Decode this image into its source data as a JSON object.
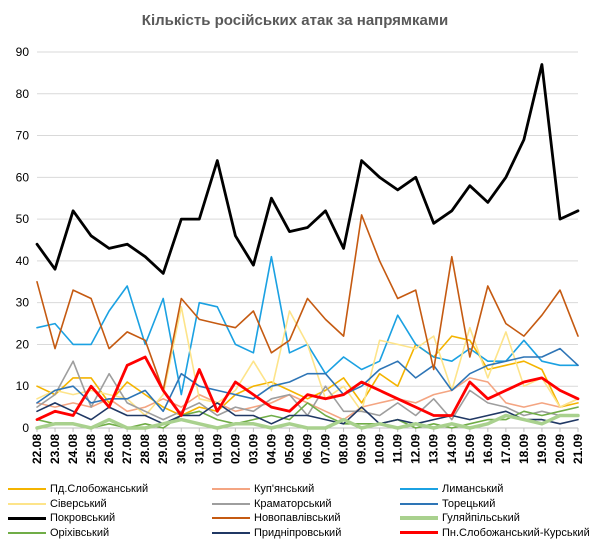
{
  "chart_data": {
    "type": "line",
    "title": "Кількість російських атак за напрямками",
    "ylim": [
      0,
      90
    ],
    "yticks": [
      0,
      10,
      20,
      30,
      40,
      50,
      60,
      70,
      80,
      90
    ],
    "grid": true,
    "legend_position": "bottom",
    "categories": [
      "22.08",
      "23.08",
      "24.08",
      "25.08",
      "26.08",
      "27.08",
      "28.08",
      "29.08",
      "30.08",
      "31.08",
      "01.09",
      "02.09",
      "03.09",
      "04.09",
      "05.09",
      "06.09",
      "07.09",
      "08.09",
      "09.09",
      "10.09",
      "11.09",
      "12.09",
      "13.09",
      "14.09",
      "15.09",
      "16.09",
      "17.09",
      "18.09",
      "19.09",
      "20.09",
      "21.09"
    ],
    "series": [
      {
        "name": "Пд.Слобожанський",
        "color": "#f4b400",
        "width": 1.6,
        "values": [
          10,
          8,
          12,
          12,
          6,
          11,
          8,
          5,
          3,
          5,
          4,
          8,
          10,
          11,
          9,
          7,
          9,
          12,
          6,
          13,
          10,
          20,
          17,
          22,
          21,
          14,
          15,
          16,
          14,
          5,
          6
        ]
      },
      {
        "name": "Куп'янський",
        "color": "#f4a582",
        "width": 1.6,
        "values": [
          6,
          5,
          6,
          5,
          7,
          4,
          5,
          7,
          5,
          8,
          6,
          4,
          5,
          6,
          8,
          6,
          4,
          2,
          5,
          6,
          7,
          6,
          8,
          9,
          12,
          11,
          6,
          5,
          6,
          5,
          7
        ]
      },
      {
        "name": "Лиманський",
        "color": "#1ba1e2",
        "width": 1.6,
        "values": [
          24,
          25,
          20,
          20,
          28,
          34,
          20,
          31,
          8,
          30,
          29,
          20,
          18,
          41,
          18,
          20,
          13,
          17,
          14,
          16,
          27,
          20,
          17,
          16,
          19,
          16,
          16,
          21,
          16,
          15,
          15
        ]
      },
      {
        "name": "Сіверський",
        "color": "#fde48a",
        "width": 1.6,
        "values": [
          7,
          9,
          8,
          9,
          8,
          7,
          3,
          8,
          29,
          7,
          6,
          9,
          16,
          9,
          28,
          20,
          7,
          10,
          4,
          21,
          20,
          19,
          22,
          9,
          24,
          12,
          23,
          10,
          12,
          5,
          7
        ]
      },
      {
        "name": "Краматорський",
        "color": "#9e9e9e",
        "width": 1.6,
        "values": [
          5,
          8,
          16,
          5,
          13,
          6,
          4,
          2,
          4,
          6,
          3,
          5,
          4,
          7,
          8,
          3,
          10,
          4,
          4,
          3,
          6,
          3,
          7,
          2,
          9,
          6,
          5,
          3,
          4,
          3,
          3
        ]
      },
      {
        "name": "Торецький",
        "color": "#2e75b6",
        "width": 1.6,
        "values": [
          6,
          9,
          10,
          6,
          7,
          7,
          9,
          4,
          13,
          10,
          9,
          8,
          7,
          10,
          11,
          13,
          13,
          8,
          10,
          14,
          16,
          12,
          15,
          9,
          13,
          15,
          16,
          17,
          17,
          19,
          15
        ]
      },
      {
        "name": "Покровський",
        "color": "#000000",
        "width": 2.8,
        "values": [
          44,
          38,
          52,
          46,
          43,
          44,
          41,
          37,
          50,
          50,
          64,
          46,
          39,
          55,
          47,
          48,
          52,
          43,
          64,
          60,
          57,
          60,
          49,
          52,
          58,
          54,
          60,
          69,
          87,
          50,
          52
        ]
      },
      {
        "name": "Новопавлівський",
        "color": "#c55a11",
        "width": 1.6,
        "values": [
          35,
          19,
          33,
          31,
          19,
          23,
          21,
          9,
          31,
          26,
          25,
          24,
          28,
          18,
          21,
          31,
          26,
          22,
          51,
          40,
          31,
          33,
          14,
          41,
          17,
          34,
          25,
          22,
          27,
          33,
          22
        ]
      },
      {
        "name": "Гуляйпільський",
        "color": "#a9d18e",
        "width": 3.5,
        "values": [
          0,
          1,
          1,
          0,
          2,
          0,
          0,
          1,
          2,
          1,
          0,
          1,
          1,
          0,
          1,
          0,
          0,
          2,
          0,
          1,
          0,
          1,
          0,
          1,
          0,
          1,
          3,
          2,
          1,
          3,
          3
        ]
      },
      {
        "name": "Оріхівський",
        "color": "#70ad47",
        "width": 1.6,
        "values": [
          2,
          1,
          1,
          0,
          1,
          0,
          1,
          0,
          3,
          4,
          2,
          1,
          2,
          3,
          2,
          6,
          3,
          1,
          1,
          1,
          2,
          0,
          1,
          0,
          1,
          2,
          2,
          4,
          3,
          4,
          5
        ]
      },
      {
        "name": "Придніпровський",
        "color": "#203864",
        "width": 1.6,
        "values": [
          4,
          6,
          4,
          2,
          5,
          3,
          3,
          1,
          3,
          3,
          6,
          3,
          3,
          1,
          3,
          3,
          2,
          1,
          5,
          1,
          2,
          1,
          2,
          3,
          2,
          3,
          4,
          2,
          2,
          1,
          2
        ]
      },
      {
        "name": "Пн.Слобожанський-Курський",
        "color": "#ff0000",
        "width": 2.8,
        "values": [
          2,
          4,
          3,
          10,
          5,
          15,
          17,
          9,
          3,
          14,
          4,
          11,
          8,
          5,
          4,
          8,
          7,
          8,
          11,
          9,
          7,
          5,
          3,
          3,
          11,
          7,
          9,
          11,
          12,
          9,
          7
        ]
      }
    ]
  }
}
